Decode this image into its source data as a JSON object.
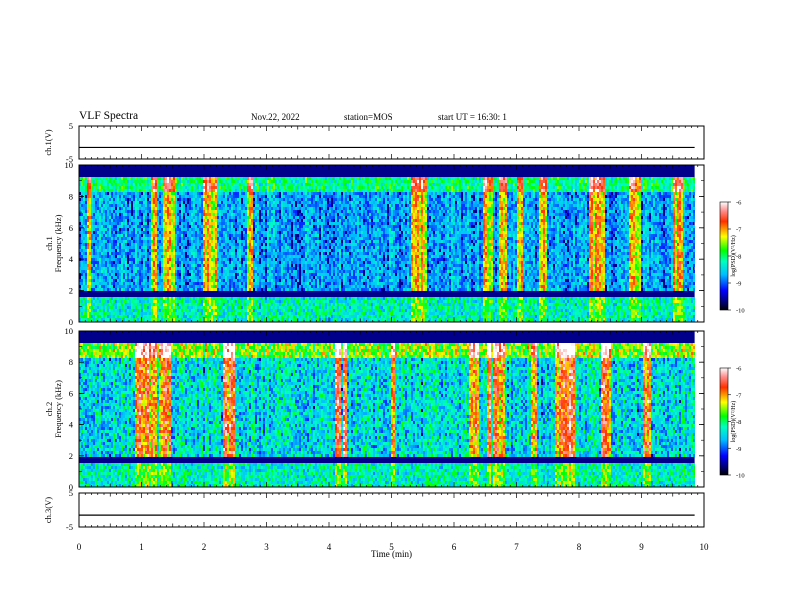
{
  "header": {
    "title": "VLF Spectra",
    "date": "Nov.22, 2022",
    "station": "station=MOS",
    "start_ut": "start UT = 16:30: 1"
  },
  "chart_data": [
    {
      "type": "line",
      "panel": "ch1-voltage",
      "ylabel": "ch.1(V)",
      "ylim": [
        -5,
        5
      ],
      "yticks": [
        "5",
        "-5"
      ],
      "xlim": [
        0,
        10
      ],
      "series": [
        {
          "x": [
            0,
            9.85
          ],
          "values": [
            -1.5,
            -1.5
          ]
        }
      ]
    },
    {
      "type": "heatmap",
      "panel": "ch1-spectrogram",
      "ylabel": "ch.1 Frequency (kHz)",
      "ylim": [
        0,
        10
      ],
      "yticks": [
        "0",
        "2",
        "4",
        "6",
        "8",
        "10"
      ],
      "xlim": [
        0,
        10
      ],
      "data_extent_min": 9.85,
      "colorbar": {
        "label": "log(PSD)(V²/Hz)",
        "range": [
          -10,
          -6
        ],
        "ticks": [
          "-6",
          "-7",
          "-8",
          "-9",
          "-10"
        ]
      }
    },
    {
      "type": "heatmap",
      "panel": "ch2-spectrogram",
      "ylabel": "ch.2 Frequency (kHz)",
      "ylim": [
        0,
        10
      ],
      "yticks": [
        "0",
        "2",
        "4",
        "6",
        "8",
        "10"
      ],
      "xlim": [
        0,
        10
      ],
      "data_extent_min": 9.85,
      "colorbar": {
        "label": "log(PSD)(V²/Hz)",
        "range": [
          -10,
          -6
        ],
        "ticks": [
          "-6",
          "-7",
          "-8",
          "-9",
          "-10"
        ]
      }
    },
    {
      "type": "line",
      "panel": "ch3-voltage",
      "ylabel": "ch.3(V)",
      "ylim": [
        -5,
        5
      ],
      "yticks": [
        "5",
        "-5"
      ],
      "xlim": [
        0,
        10
      ],
      "xlabel": "Time (min)",
      "xticks": [
        "0",
        "1",
        "2",
        "3",
        "4",
        "5",
        "6",
        "7",
        "8",
        "9",
        "10"
      ],
      "series": [
        {
          "x": [
            0,
            9.85
          ],
          "values": [
            -1.5,
            -1.5
          ]
        }
      ]
    }
  ]
}
